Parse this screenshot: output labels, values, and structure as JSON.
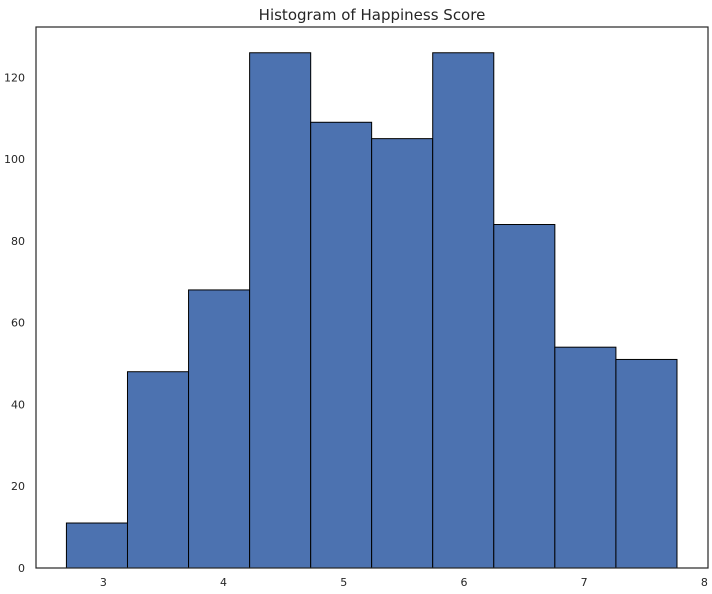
{
  "chart_data": {
    "type": "bar",
    "title": "Histogram of Happiness Score",
    "xlabel": "",
    "ylabel": "",
    "bins": [
      {
        "x0": 2.693,
        "x1": 3.201,
        "count": 11
      },
      {
        "x0": 3.201,
        "x1": 3.709,
        "count": 48
      },
      {
        "x0": 3.709,
        "x1": 4.217,
        "count": 68
      },
      {
        "x0": 4.217,
        "x1": 4.725,
        "count": 126
      },
      {
        "x0": 4.725,
        "x1": 5.232,
        "count": 109
      },
      {
        "x0": 5.232,
        "x1": 5.74,
        "count": 105
      },
      {
        "x0": 5.74,
        "x1": 6.248,
        "count": 126
      },
      {
        "x0": 6.248,
        "x1": 6.756,
        "count": 84
      },
      {
        "x0": 6.756,
        "x1": 7.264,
        "count": 54
      },
      {
        "x0": 7.264,
        "x1": 7.772,
        "count": 51
      }
    ],
    "xlim": [
      2.44,
      8.03
    ],
    "ylim": [
      0,
      132.3
    ],
    "xticks": [
      3,
      4,
      5,
      6,
      7,
      8
    ],
    "yticks": [
      0,
      20,
      40,
      60,
      80,
      100,
      120
    ],
    "grid": false,
    "bar_color": "#4c72b0",
    "edge_color": "#000000"
  }
}
